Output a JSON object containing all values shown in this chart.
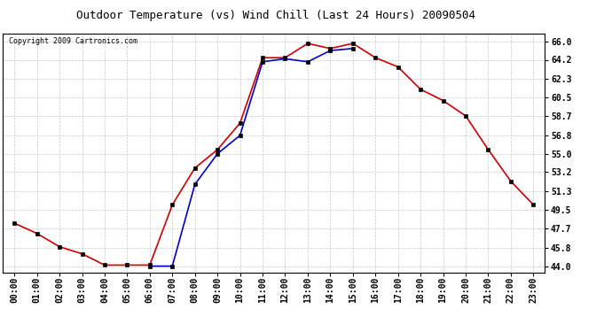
{
  "title": "Outdoor Temperature (vs) Wind Chill (Last 24 Hours) 20090504",
  "copyright": "Copyright 2009 Cartronics.com",
  "hours": [
    "00:00",
    "01:00",
    "02:00",
    "03:00",
    "04:00",
    "05:00",
    "06:00",
    "07:00",
    "08:00",
    "09:00",
    "10:00",
    "11:00",
    "12:00",
    "13:00",
    "14:00",
    "15:00",
    "16:00",
    "17:00",
    "18:00",
    "19:00",
    "20:00",
    "21:00",
    "22:00",
    "23:00"
  ],
  "temp": [
    48.2,
    47.2,
    45.9,
    45.2,
    44.1,
    44.1,
    44.1,
    50.0,
    53.6,
    55.4,
    58.0,
    64.4,
    64.4,
    65.8,
    65.3,
    65.8,
    64.4,
    63.5,
    61.3,
    60.2,
    58.7,
    55.4,
    52.3,
    50.0
  ],
  "windchill_x": [
    6,
    7,
    8,
    9,
    10,
    11,
    12,
    13,
    14,
    15
  ],
  "windchill_y": [
    44.0,
    44.0,
    52.0,
    55.0,
    56.8,
    64.0,
    64.3,
    64.0,
    65.1,
    65.3
  ],
  "temp_color": "#cc0000",
  "windchill_color": "#0000cc",
  "bg_color": "#ffffff",
  "plot_bg": "#ffffff",
  "grid_color": "#c8c8c8",
  "yticks": [
    44.0,
    45.8,
    47.7,
    49.5,
    51.3,
    53.2,
    55.0,
    56.8,
    58.7,
    60.5,
    62.3,
    64.2,
    66.0
  ],
  "ylim": [
    43.4,
    66.8
  ],
  "markersize": 3.5,
  "linewidth": 1.2,
  "title_fontsize": 9,
  "tick_fontsize": 7,
  "copyright_fontsize": 6
}
